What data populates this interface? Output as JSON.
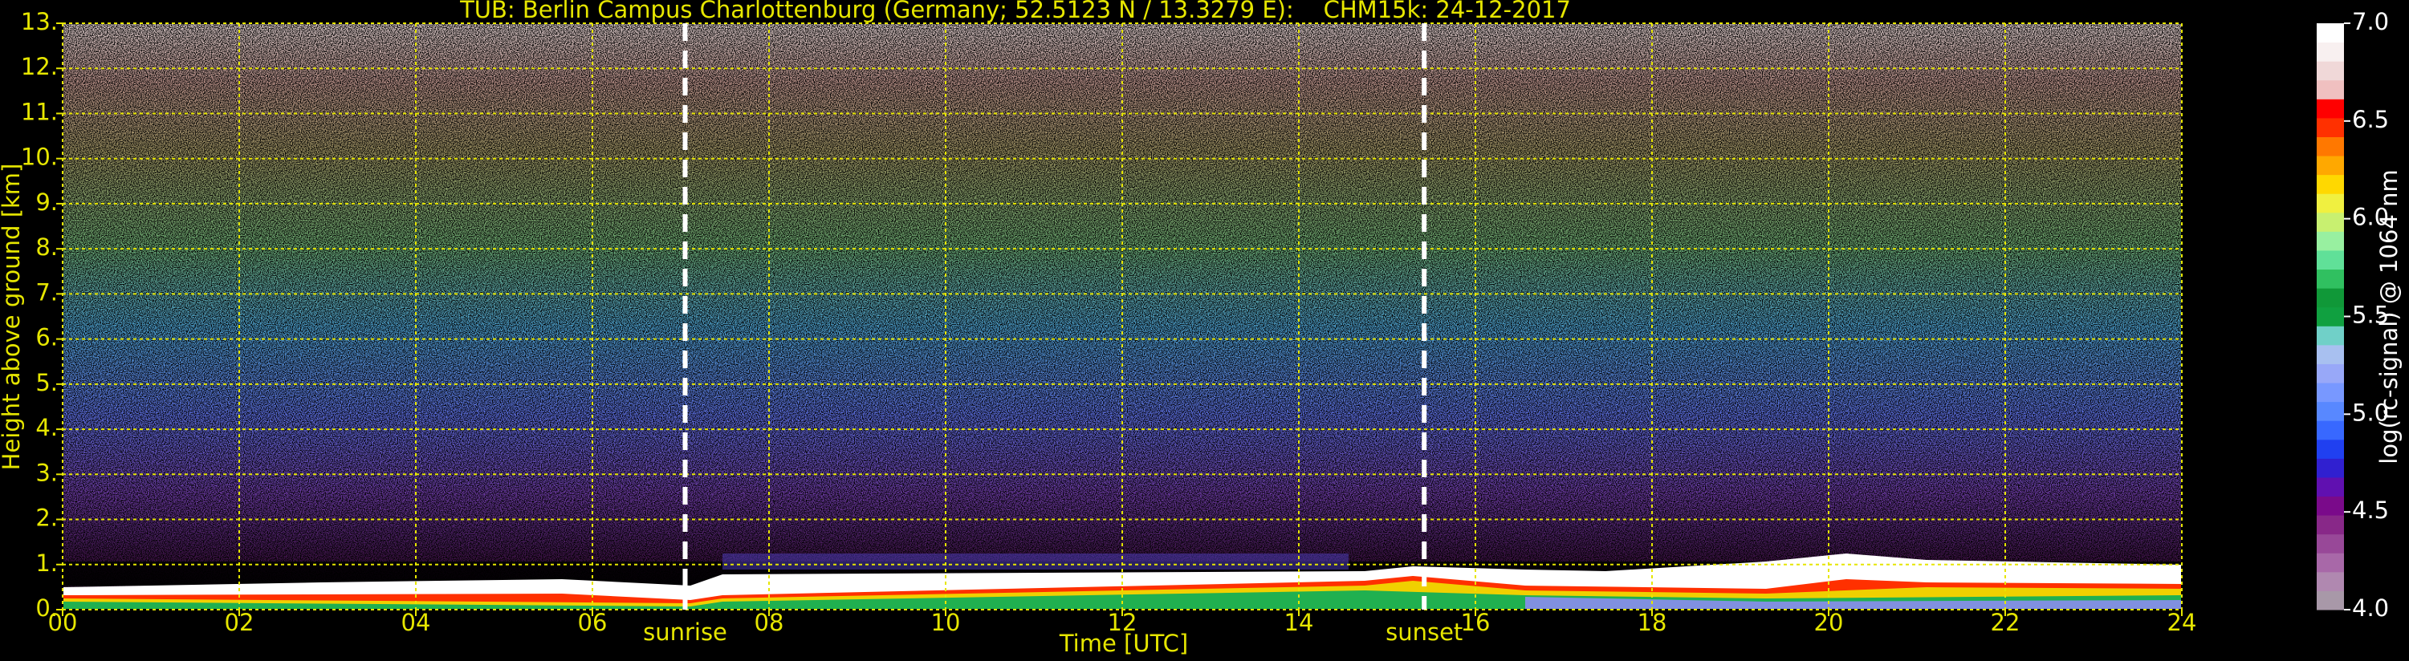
{
  "chart_data": {
    "type": "heatmap",
    "title": "TUB: Berlin Campus Charlottenburg (Germany; 52.5123 N / 13.3279 E):    CHM15k: 24-12-2017",
    "xlabel": "Time [UTC]",
    "ylabel": "Height above ground [km]",
    "xlim": [
      0,
      24
    ],
    "ylim": [
      0,
      13
    ],
    "xticks": [
      {
        "value": 0,
        "label": "00"
      },
      {
        "value": 2,
        "label": "02"
      },
      {
        "value": 4,
        "label": "04"
      },
      {
        "value": 6,
        "label": "06"
      },
      {
        "value": 8,
        "label": "08"
      },
      10,
      12,
      14,
      16,
      18,
      20,
      22,
      24
    ],
    "yticks": [
      {
        "value": 0,
        "label": "0."
      },
      {
        "value": 1,
        "label": "1."
      },
      {
        "value": 2,
        "label": "2."
      },
      {
        "value": 3,
        "label": "3."
      },
      {
        "value": 4,
        "label": "4."
      },
      {
        "value": 5,
        "label": "5."
      },
      {
        "value": 6,
        "label": "6."
      },
      {
        "value": 7,
        "label": "7."
      },
      {
        "value": 8,
        "label": "8."
      },
      {
        "value": 9,
        "label": "9."
      },
      {
        "value": 10,
        "label": "10."
      },
      {
        "value": 11,
        "label": "11."
      },
      {
        "value": 12,
        "label": "12."
      },
      {
        "value": 13,
        "label": "13."
      }
    ],
    "grid": true,
    "grid_color": "#e6e600",
    "text_color": "#e6e600",
    "annotations": [
      {
        "text": "sunrise",
        "x": 7.05
      },
      {
        "text": "sunset",
        "x": 15.42
      }
    ],
    "colorbar": {
      "label": "log(rc-signal) @ 1064 nm",
      "lim": [
        4,
        7
      ],
      "ticks": [
        {
          "value": 4,
          "label": "4.0"
        },
        4.5,
        {
          "value": 5,
          "label": "5.0"
        },
        5.5,
        {
          "value": 6,
          "label": "6.0"
        },
        6.5,
        {
          "value": 7,
          "label": "7.0"
        }
      ],
      "colors": [
        "#a898a8",
        "#b088b0",
        "#a868a8",
        "#984898",
        "#882888",
        "#7a0a8a",
        "#6010b0",
        "#3020d0",
        "#2040f0",
        "#3868ff",
        "#5888ff",
        "#7898ff",
        "#98a8f8",
        "#a8c0f0",
        "#70d0c8",
        "#10a040",
        "#109838",
        "#30c060",
        "#60e098",
        "#98f0a0",
        "#c8f070",
        "#f0f040",
        "#ffd800",
        "#ffa800",
        "#ff7800",
        "#ff3000",
        "#ff0000",
        "#f0c0c0",
        "#f0d8d8",
        "#f8f0f0",
        "#ffffff"
      ]
    }
  }
}
